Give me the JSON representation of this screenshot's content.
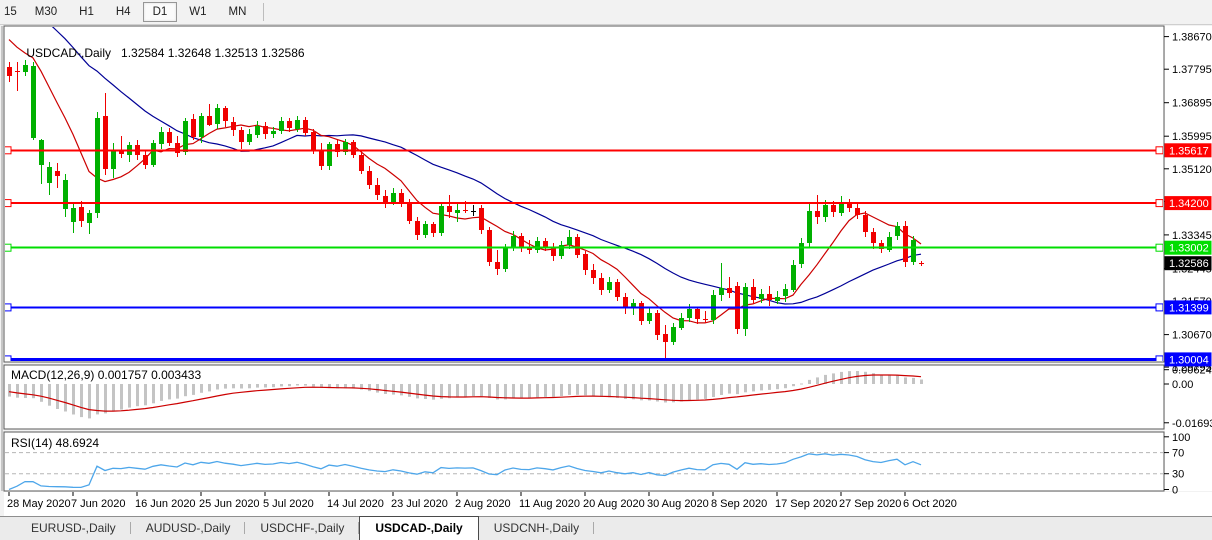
{
  "toolbar": {
    "timeframes": [
      {
        "label": "15",
        "active": false
      },
      {
        "label": "M30",
        "active": false
      },
      {
        "label": "H1",
        "active": false
      },
      {
        "label": "H4",
        "active": false
      },
      {
        "label": "D1",
        "active": true
      },
      {
        "label": "W1",
        "active": false
      },
      {
        "label": "MN",
        "active": false
      }
    ]
  },
  "chart": {
    "title": "USDCAD-,Daily",
    "ohlc_text": "1.32584 1.32648 1.32513 1.32586",
    "price_axis_labels": [
      "1.38670",
      "1.37795",
      "1.36895",
      "1.35995",
      "1.35120",
      "1.34245",
      "1.33345",
      "1.32445",
      "1.31570",
      "1.30670",
      "1.29795"
    ],
    "hlines": [
      {
        "label": "1.35617",
        "price": 1.35617,
        "color": "#ff0000",
        "width": 2
      },
      {
        "label": "1.34200",
        "price": 1.342,
        "color": "#ff0000",
        "width": 2
      },
      {
        "label": "1.33002",
        "price": 1.33002,
        "color": "#00dd00",
        "width": 2
      },
      {
        "label": "1.31399",
        "price": 1.31399,
        "color": "#0000ff",
        "width": 2
      },
      {
        "label": "1.30004",
        "price": 1.30004,
        "color": "#0000ff",
        "width": 3
      }
    ],
    "bid": {
      "label": "1.32586",
      "price": 1.32586,
      "badge_color": "#000000"
    }
  },
  "macd_panel": {
    "label": "MACD(12,26,9) 0.001757 0.003433",
    "params": [
      12,
      26,
      9
    ],
    "current_values": [
      "0.001757",
      "0.003433"
    ],
    "axis": [
      {
        "label": "0.006245",
        "value": 0.006245
      },
      {
        "label": "0.00",
        "value": 0
      },
      {
        "label": "-0.016933",
        "value": -0.016933
      }
    ]
  },
  "rsi_panel": {
    "label": "RSI(14) 48.6924",
    "period": 14,
    "current_value": "48.6924",
    "axis": [
      {
        "label": "100",
        "value": 100
      },
      {
        "label": "70",
        "value": 70
      },
      {
        "label": "30",
        "value": 30
      },
      {
        "label": "0",
        "value": 0
      }
    ],
    "dashed_levels": [
      70,
      30
    ]
  },
  "tabs": {
    "items": [
      {
        "label": "EURUSD-,Daily",
        "active": false
      },
      {
        "label": "AUDUSD-,Daily",
        "active": false
      },
      {
        "label": "USDCHF-,Daily",
        "active": false
      },
      {
        "label": "USDCAD-,Daily",
        "active": true
      },
      {
        "label": "USDCNH-,Daily",
        "active": false
      }
    ]
  },
  "colors": {
    "candle_up": "#00b000",
    "candle_down": "#f00000",
    "doji_neutral": "#000000",
    "ma_fast": "#cc0000",
    "ma_slow": "#000096",
    "macd_hist": "#c4c4c4",
    "macd_signal": "#cc0000",
    "rsi_line": "#4da6ea",
    "panel_bg": "#ffffff",
    "badge_text": "#ffffff"
  },
  "chart_data": {
    "type": "candlestick",
    "symbol": "USDCAD",
    "timeframe": "Daily",
    "ohlc_current": {
      "open": "1.32584",
      "high": "1.32648",
      "low": "1.32513",
      "close": "1.32586"
    },
    "x_labels": [
      "28 May 2020",
      "7 Jun 2020",
      "16 Jun 2020",
      "25 Jun 2020",
      "5 Jul 2020",
      "14 Jul 2020",
      "23 Jul 2020",
      "2 Aug 2020",
      "11 Aug 2020",
      "20 Aug 2020",
      "30 Aug 2020",
      "8 Sep 2020",
      "17 Sep 2020",
      "27 Sep 2020",
      "6 Oct 2020"
    ],
    "label_every_n_bars": 8,
    "y_range": [
      1.2996,
      1.389
    ],
    "candles": [
      [
        1.3785,
        1.38,
        1.3745,
        1.376
      ],
      [
        1.3775,
        1.38,
        1.3722,
        1.3772
      ],
      [
        1.3772,
        1.3805,
        1.3762,
        1.379
      ],
      [
        1.3597,
        1.38,
        1.359,
        1.3789
      ],
      [
        1.352,
        1.3592,
        1.347,
        1.3588
      ],
      [
        1.3472,
        1.353,
        1.3442,
        1.3516
      ],
      [
        1.3505,
        1.3528,
        1.346,
        1.3492
      ],
      [
        1.3405,
        1.3498,
        1.3383,
        1.3482
      ],
      [
        1.3368,
        1.342,
        1.334,
        1.3406
      ],
      [
        1.341,
        1.3425,
        1.3355,
        1.3372
      ],
      [
        1.3366,
        1.3402,
        1.3338,
        1.3394
      ],
      [
        1.3394,
        1.3665,
        1.338,
        1.3648
      ],
      [
        1.3655,
        1.3716,
        1.3495,
        1.3512
      ],
      [
        1.3512,
        1.358,
        1.3488,
        1.356
      ],
      [
        1.356,
        1.36,
        1.354,
        1.3551
      ],
      [
        1.3548,
        1.3585,
        1.353,
        1.3575
      ],
      [
        1.3575,
        1.359,
        1.3535,
        1.3548
      ],
      [
        1.3548,
        1.3562,
        1.3512,
        1.3522
      ],
      [
        1.3522,
        1.3588,
        1.3516,
        1.358
      ],
      [
        1.358,
        1.3625,
        1.3565,
        1.3612
      ],
      [
        1.3612,
        1.3622,
        1.3572,
        1.3582
      ],
      [
        1.3582,
        1.36,
        1.3545,
        1.3556
      ],
      [
        1.3556,
        1.3648,
        1.355,
        1.364
      ],
      [
        1.3645,
        1.366,
        1.359,
        1.3598
      ],
      [
        1.3598,
        1.3662,
        1.358,
        1.3655
      ],
      [
        1.3655,
        1.3685,
        1.3628,
        1.3632
      ],
      [
        1.3632,
        1.3686,
        1.3618,
        1.3674
      ],
      [
        1.3674,
        1.368,
        1.3625,
        1.3638
      ],
      [
        1.3638,
        1.3652,
        1.36,
        1.3616
      ],
      [
        1.3616,
        1.3624,
        1.3565,
        1.3584
      ],
      [
        1.3584,
        1.3618,
        1.3576,
        1.3605
      ],
      [
        1.3605,
        1.364,
        1.3595,
        1.3628
      ],
      [
        1.3628,
        1.3638,
        1.3592,
        1.3606
      ],
      [
        1.3606,
        1.3625,
        1.3596,
        1.3614
      ],
      [
        1.3614,
        1.365,
        1.3605,
        1.364
      ],
      [
        1.364,
        1.3648,
        1.361,
        1.362
      ],
      [
        1.362,
        1.3655,
        1.3612,
        1.3644
      ],
      [
        1.3644,
        1.3652,
        1.36,
        1.361
      ],
      [
        1.361,
        1.3618,
        1.3552,
        1.3562
      ],
      [
        1.3562,
        1.358,
        1.3508,
        1.3518
      ],
      [
        1.3518,
        1.3585,
        1.351,
        1.3578
      ],
      [
        1.3578,
        1.359,
        1.3545,
        1.3556
      ],
      [
        1.3556,
        1.3592,
        1.3548,
        1.3584
      ],
      [
        1.3584,
        1.359,
        1.354,
        1.3548
      ],
      [
        1.3548,
        1.356,
        1.3498,
        1.3506
      ],
      [
        1.3506,
        1.352,
        1.3458,
        1.3468
      ],
      [
        1.3468,
        1.3488,
        1.3428,
        1.344
      ],
      [
        1.344,
        1.3455,
        1.3408,
        1.3424
      ],
      [
        1.3424,
        1.346,
        1.3415,
        1.3448
      ],
      [
        1.3448,
        1.3458,
        1.341,
        1.342
      ],
      [
        1.342,
        1.3432,
        1.3364,
        1.3372
      ],
      [
        1.3372,
        1.3382,
        1.3322,
        1.3334
      ],
      [
        1.3334,
        1.3372,
        1.3326,
        1.3364
      ],
      [
        1.3364,
        1.337,
        1.3328,
        1.334
      ],
      [
        1.334,
        1.3422,
        1.3332,
        1.3412
      ],
      [
        1.3412,
        1.3442,
        1.338,
        1.3395
      ],
      [
        1.3395,
        1.342,
        1.337,
        1.3402
      ],
      [
        1.3402,
        1.3425,
        1.3392,
        1.3398
      ],
      [
        1.34,
        1.3414,
        1.3386,
        1.34
      ],
      [
        1.3408,
        1.3415,
        1.3338,
        1.3348
      ],
      [
        1.3348,
        1.3356,
        1.3252,
        1.3262
      ],
      [
        1.3262,
        1.3295,
        1.3228,
        1.3242
      ],
      [
        1.3242,
        1.331,
        1.3236,
        1.3302
      ],
      [
        1.3302,
        1.3345,
        1.3292,
        1.3332
      ],
      [
        1.3332,
        1.334,
        1.3288,
        1.33
      ],
      [
        1.33,
        1.3322,
        1.3282,
        1.3295
      ],
      [
        1.3295,
        1.333,
        1.3285,
        1.3318
      ],
      [
        1.3318,
        1.3325,
        1.3292,
        1.3302
      ],
      [
        1.3302,
        1.3312,
        1.3265,
        1.3278
      ],
      [
        1.3278,
        1.3318,
        1.327,
        1.3308
      ],
      [
        1.3308,
        1.3348,
        1.3298,
        1.333
      ],
      [
        1.333,
        1.3338,
        1.3272,
        1.3282
      ],
      [
        1.3282,
        1.3292,
        1.3228,
        1.324
      ],
      [
        1.324,
        1.3256,
        1.3202,
        1.3218
      ],
      [
        1.3218,
        1.3232,
        1.3172,
        1.3186
      ],
      [
        1.3186,
        1.3222,
        1.3178,
        1.3208
      ],
      [
        1.3208,
        1.3215,
        1.3158,
        1.3168
      ],
      [
        1.3168,
        1.3178,
        1.3122,
        1.314
      ],
      [
        1.314,
        1.3162,
        1.312,
        1.3152
      ],
      [
        1.3152,
        1.3158,
        1.3092,
        1.3105
      ],
      [
        1.3105,
        1.3138,
        1.3095,
        1.3126
      ],
      [
        1.3126,
        1.3132,
        1.3052,
        1.3068
      ],
      [
        1.3068,
        1.3092,
        1.3005,
        1.3046
      ],
      [
        1.3046,
        1.3098,
        1.304,
        1.3086
      ],
      [
        1.3086,
        1.3125,
        1.3078,
        1.3112
      ],
      [
        1.3112,
        1.3148,
        1.3102,
        1.3136
      ],
      [
        1.3136,
        1.3142,
        1.3095,
        1.3108
      ],
      [
        1.3108,
        1.313,
        1.3098,
        1.3104
      ],
      [
        1.3104,
        1.3186,
        1.3096,
        1.3172
      ],
      [
        1.3172,
        1.326,
        1.3158,
        1.3192
      ],
      [
        1.3192,
        1.3222,
        1.3165,
        1.3178
      ],
      [
        1.3198,
        1.3208,
        1.3068,
        1.3082
      ],
      [
        1.3082,
        1.3205,
        1.3062,
        1.3196
      ],
      [
        1.3196,
        1.3215,
        1.3148,
        1.3162
      ],
      [
        1.3162,
        1.3188,
        1.3152,
        1.3175
      ],
      [
        1.3175,
        1.3198,
        1.3145,
        1.3158
      ],
      [
        1.3158,
        1.3185,
        1.315,
        1.3168
      ],
      [
        1.3168,
        1.3202,
        1.3155,
        1.3188
      ],
      [
        1.3188,
        1.3268,
        1.318,
        1.3255
      ],
      [
        1.3255,
        1.3325,
        1.3245,
        1.3312
      ],
      [
        1.3312,
        1.342,
        1.33,
        1.3398
      ],
      [
        1.3398,
        1.3442,
        1.3365,
        1.3382
      ],
      [
        1.3382,
        1.3428,
        1.337,
        1.3415
      ],
      [
        1.3415,
        1.3425,
        1.3382,
        1.3395
      ],
      [
        1.3395,
        1.344,
        1.3385,
        1.3418
      ],
      [
        1.3418,
        1.3432,
        1.3395,
        1.3408
      ],
      [
        1.3408,
        1.3422,
        1.3378,
        1.3388
      ],
      [
        1.3388,
        1.3398,
        1.3328,
        1.3342
      ],
      [
        1.3342,
        1.3352,
        1.3298,
        1.3312
      ],
      [
        1.3312,
        1.3322,
        1.3285,
        1.3296
      ],
      [
        1.3296,
        1.3342,
        1.3288,
        1.333
      ],
      [
        1.333,
        1.3368,
        1.3322,
        1.3358
      ],
      [
        1.3358,
        1.3372,
        1.3248,
        1.3262
      ],
      [
        1.3262,
        1.3332,
        1.3255,
        1.3322
      ],
      [
        1.32584,
        1.32648,
        1.32513,
        1.32586
      ]
    ],
    "indicators": {
      "sma_fast": {
        "period": 8,
        "color": "#cc0000"
      },
      "sma_slow": {
        "period": 26,
        "color": "#000096"
      },
      "macd": {
        "fast": 12,
        "slow": 26,
        "signal": 9
      },
      "rsi": {
        "period": 14
      },
      "warmup": {
        "flat": 1.402,
        "flat_bars": 30,
        "decline_to": 1.381,
        "decline_bars": 10
      }
    }
  }
}
